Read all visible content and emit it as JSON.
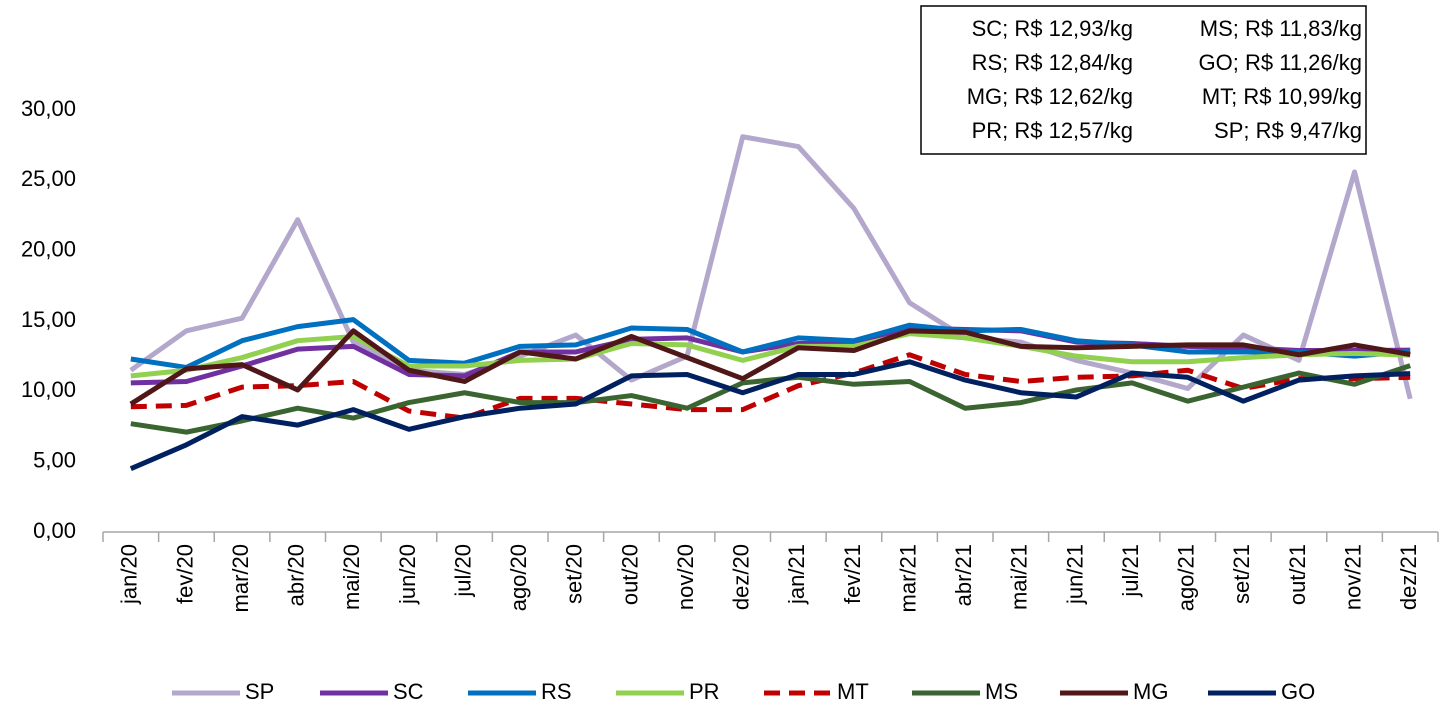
{
  "chart_data": {
    "type": "line",
    "categories": [
      "jan/20",
      "fev/20",
      "mar/20",
      "abr/20",
      "mai/20",
      "jun/20",
      "jul/20",
      "ago/20",
      "set/20",
      "out/20",
      "nov/20",
      "dez/20",
      "jan/21",
      "fev/21",
      "mar/21",
      "abr/21",
      "mai/21",
      "jun/21",
      "jul/21",
      "ago/21",
      "set/21",
      "out/21",
      "nov/21",
      "dez/21"
    ],
    "series": [
      {
        "name": "SP",
        "color": "#b4a7cc",
        "dash": false,
        "values": [
          11.5,
          14.3,
          15.2,
          22.2,
          13.5,
          11.5,
          11.2,
          12.5,
          14.0,
          10.8,
          12.5,
          28.1,
          27.4,
          23.0,
          16.3,
          13.8,
          13.5,
          12.2,
          11.3,
          10.2,
          14.0,
          12.2,
          25.6,
          9.47
        ]
      },
      {
        "name": "SC",
        "color": "#7030a0",
        "dash": false,
        "values": [
          10.6,
          10.7,
          11.8,
          13.0,
          13.2,
          11.2,
          11.1,
          12.8,
          12.8,
          13.7,
          13.8,
          12.8,
          13.4,
          13.5,
          14.5,
          14.4,
          14.3,
          13.5,
          13.4,
          13.2,
          13.1,
          12.9,
          12.9,
          12.93
        ]
      },
      {
        "name": "RS",
        "color": "#0070c0",
        "dash": false,
        "values": [
          12.3,
          11.7,
          13.6,
          14.6,
          15.1,
          12.2,
          12.0,
          13.2,
          13.3,
          14.5,
          14.4,
          12.8,
          13.8,
          13.6,
          14.7,
          14.3,
          14.4,
          13.6,
          13.3,
          12.8,
          12.8,
          12.8,
          12.5,
          12.84
        ]
      },
      {
        "name": "PR",
        "color": "#92d050",
        "dash": false,
        "values": [
          11.1,
          11.5,
          12.4,
          13.6,
          13.9,
          11.8,
          11.8,
          12.2,
          12.3,
          13.4,
          13.3,
          12.2,
          13.2,
          13.2,
          14.1,
          13.8,
          13.2,
          12.5,
          12.1,
          12.1,
          12.4,
          12.6,
          12.7,
          12.57
        ]
      },
      {
        "name": "MT",
        "color": "#c00000",
        "dash": true,
        "values": [
          8.9,
          9.0,
          10.3,
          10.4,
          10.7,
          8.6,
          8.1,
          9.5,
          9.5,
          9.1,
          8.7,
          8.7,
          10.4,
          11.3,
          12.6,
          11.2,
          10.7,
          11.0,
          11.1,
          11.5,
          10.2,
          10.9,
          10.9,
          10.99
        ]
      },
      {
        "name": "MS",
        "color": "#3b6530",
        "dash": false,
        "values": [
          7.7,
          7.1,
          7.9,
          8.8,
          8.1,
          9.2,
          9.9,
          9.2,
          9.2,
          9.7,
          8.8,
          10.6,
          11.0,
          10.5,
          10.7,
          8.8,
          9.2,
          10.1,
          10.6,
          9.3,
          10.3,
          11.3,
          10.5,
          11.83
        ]
      },
      {
        "name": "MG",
        "color": "#4f1717",
        "dash": false,
        "values": [
          9.1,
          11.6,
          11.9,
          10.1,
          14.3,
          11.5,
          10.7,
          12.8,
          12.3,
          13.9,
          12.4,
          10.9,
          13.1,
          12.9,
          14.3,
          14.2,
          13.2,
          13.1,
          13.2,
          13.3,
          13.3,
          12.6,
          13.3,
          12.62
        ]
      },
      {
        "name": "GO",
        "color": "#002060",
        "dash": false,
        "values": [
          4.5,
          6.2,
          8.2,
          7.6,
          8.7,
          7.3,
          8.2,
          8.8,
          9.1,
          11.1,
          11.2,
          9.9,
          11.2,
          11.2,
          12.1,
          10.8,
          9.9,
          9.6,
          11.3,
          11.0,
          9.3,
          10.8,
          11.1,
          11.26
        ]
      }
    ],
    "ylim": [
      0,
      30
    ],
    "yticks": [
      {
        "value": 0,
        "label": "0,00"
      },
      {
        "value": 5,
        "label": "5,00"
      },
      {
        "value": 10,
        "label": "10,00"
      },
      {
        "value": 15,
        "label": "15,00"
      },
      {
        "value": 20,
        "label": "20,00"
      },
      {
        "value": 25,
        "label": "25,00"
      },
      {
        "value": 30,
        "label": "30,00"
      }
    ],
    "grid": false,
    "annotations": [
      "SC; R$ 12,93/kg",
      "RS; R$ 12,84/kg",
      "MG; R$ 12,62/kg",
      "PR; R$ 12,57/kg",
      "MS; R$ 11,83/kg",
      "GO; R$ 11,26/kg",
      "MT; R$ 10,99/kg",
      "SP; R$ 9,47/kg"
    ]
  }
}
